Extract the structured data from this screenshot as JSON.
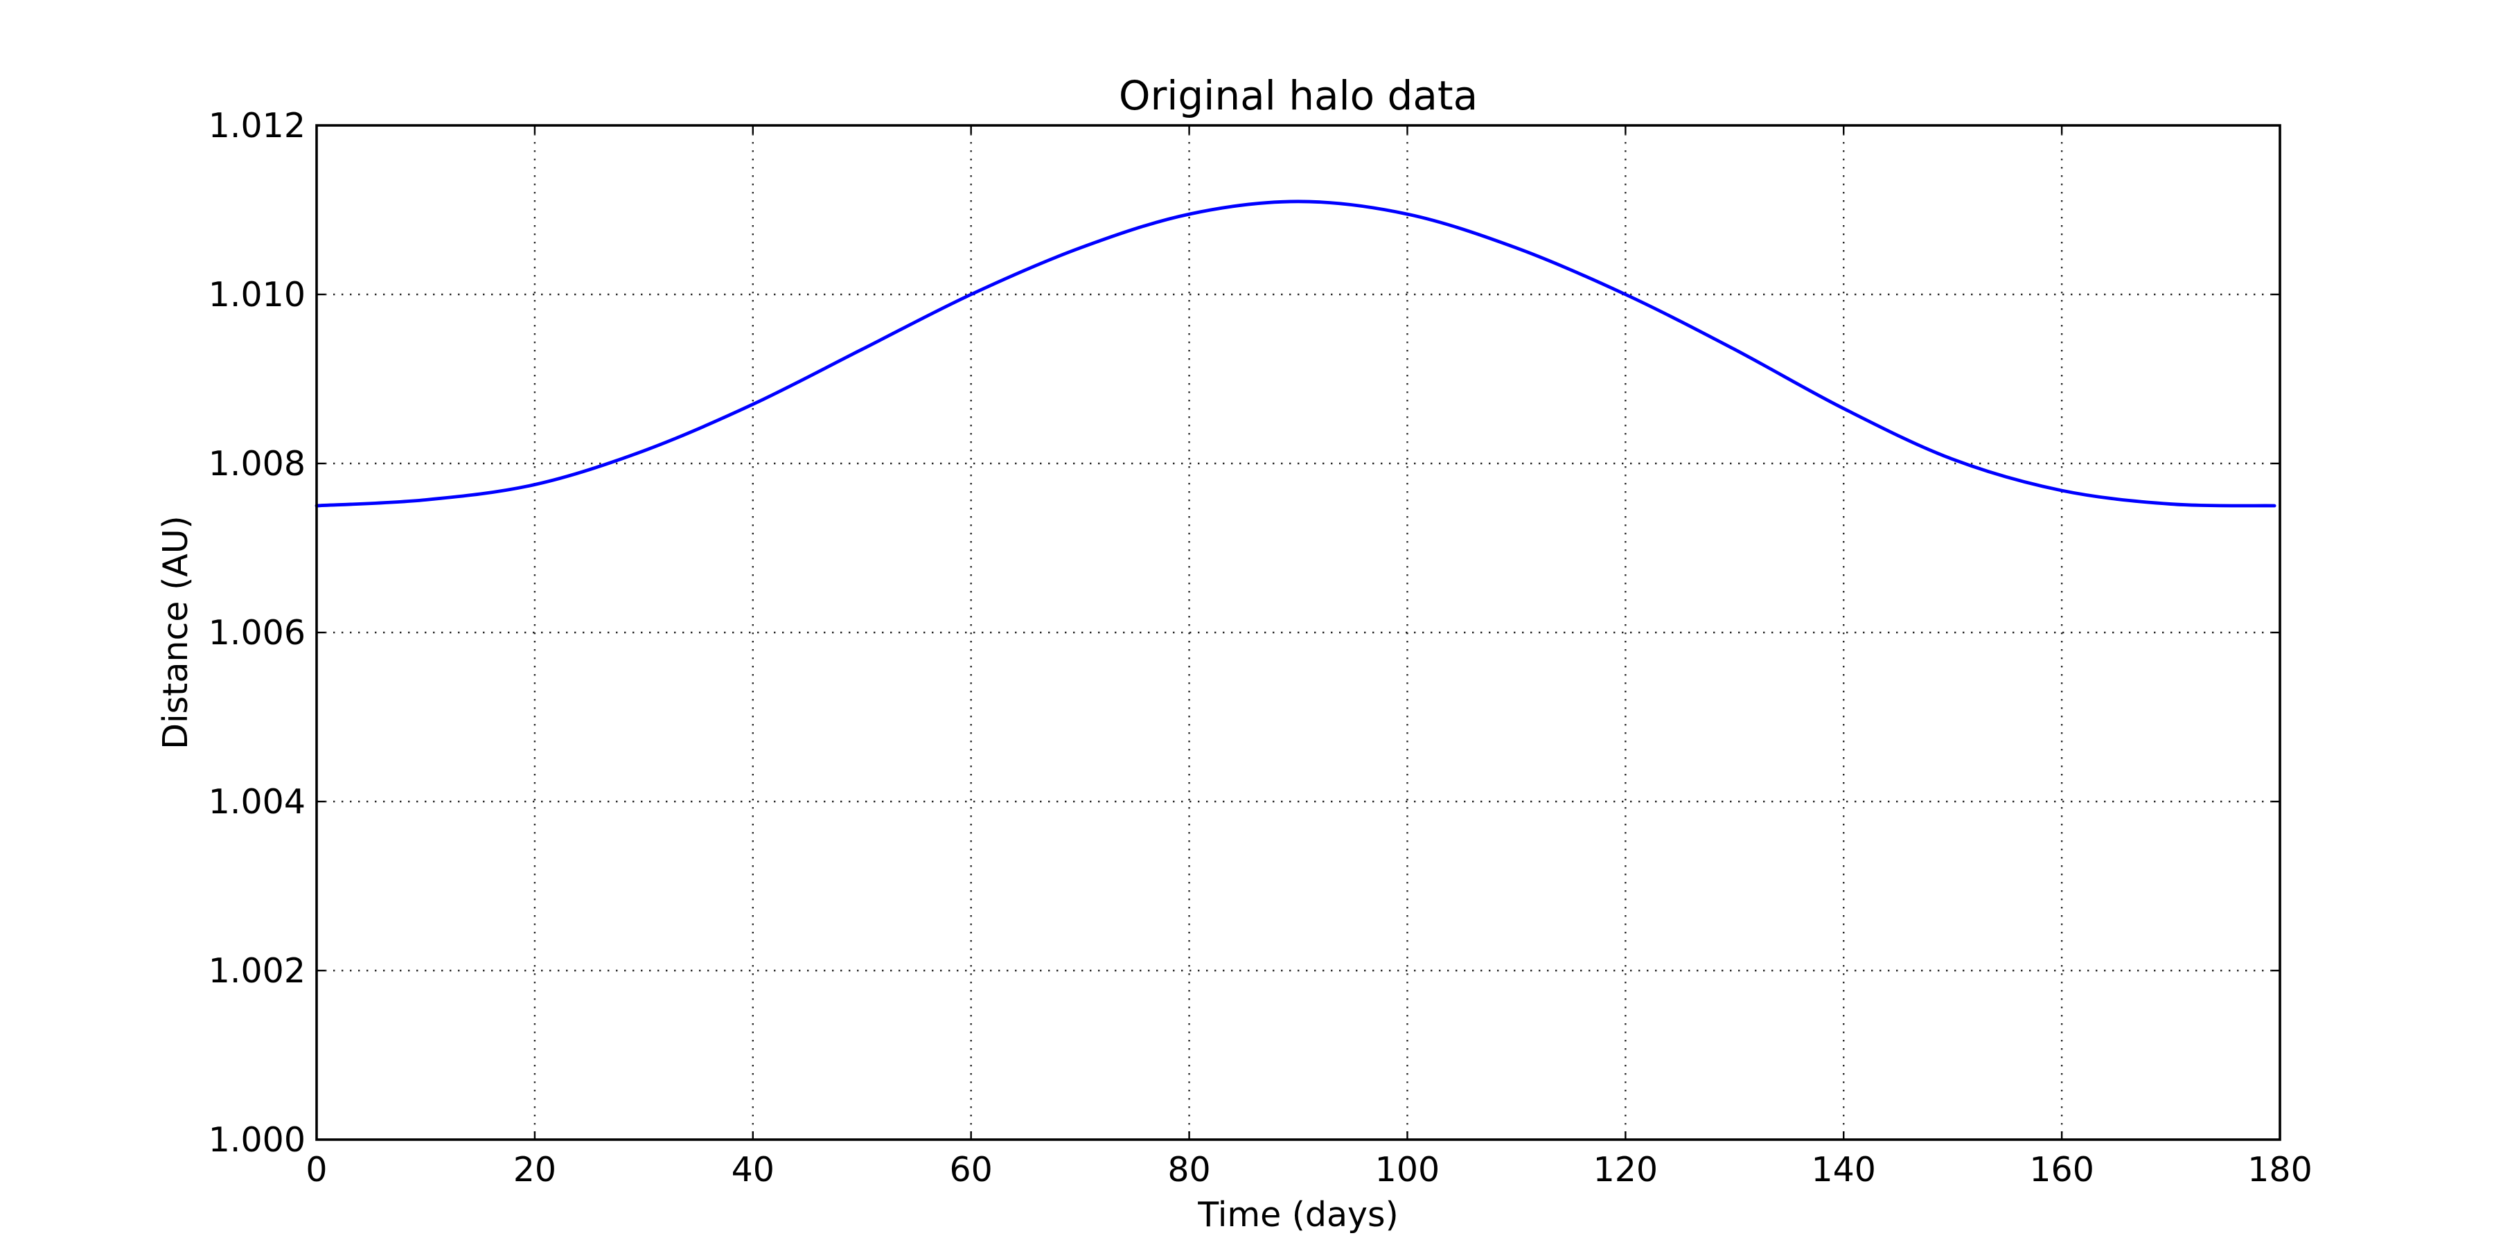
{
  "chart_data": {
    "type": "line",
    "title": "Original halo data",
    "xlabel": "Time (days)",
    "ylabel": "Distance (AU)",
    "xlim": [
      0,
      180
    ],
    "ylim": [
      1.0,
      1.012
    ],
    "grid": true,
    "x_ticks": [
      {
        "value": 0,
        "label": "0"
      },
      {
        "value": 20,
        "label": "20"
      },
      {
        "value": 40,
        "label": "40"
      },
      {
        "value": 60,
        "label": "60"
      },
      {
        "value": 80,
        "label": "80"
      },
      {
        "value": 100,
        "label": "100"
      },
      {
        "value": 120,
        "label": "120"
      },
      {
        "value": 140,
        "label": "140"
      },
      {
        "value": 160,
        "label": "160"
      },
      {
        "value": 180,
        "label": "180"
      }
    ],
    "y_ticks": [
      {
        "value": 1.0,
        "label": "1.000"
      },
      {
        "value": 1.002,
        "label": "1.002"
      },
      {
        "value": 1.004,
        "label": "1.004"
      },
      {
        "value": 1.006,
        "label": "1.006"
      },
      {
        "value": 1.008,
        "label": "1.008"
      },
      {
        "value": 1.01,
        "label": "1.010"
      },
      {
        "value": 1.012,
        "label": "1.012"
      }
    ],
    "series": [
      {
        "color": "#0000ff",
        "x": [
          0,
          10,
          20,
          30,
          40,
          50,
          60,
          70,
          80,
          90,
          100,
          110,
          120,
          130,
          140,
          150,
          160,
          170,
          179.5
        ],
        "y": [
          1.0075,
          1.00757,
          1.00775,
          1.00815,
          1.0087,
          1.00935,
          1.01,
          1.01055,
          1.01095,
          1.0111,
          1.01095,
          1.01055,
          1.01,
          1.00935,
          1.00865,
          1.00805,
          1.00768,
          1.00752,
          1.0075
        ]
      }
    ]
  }
}
